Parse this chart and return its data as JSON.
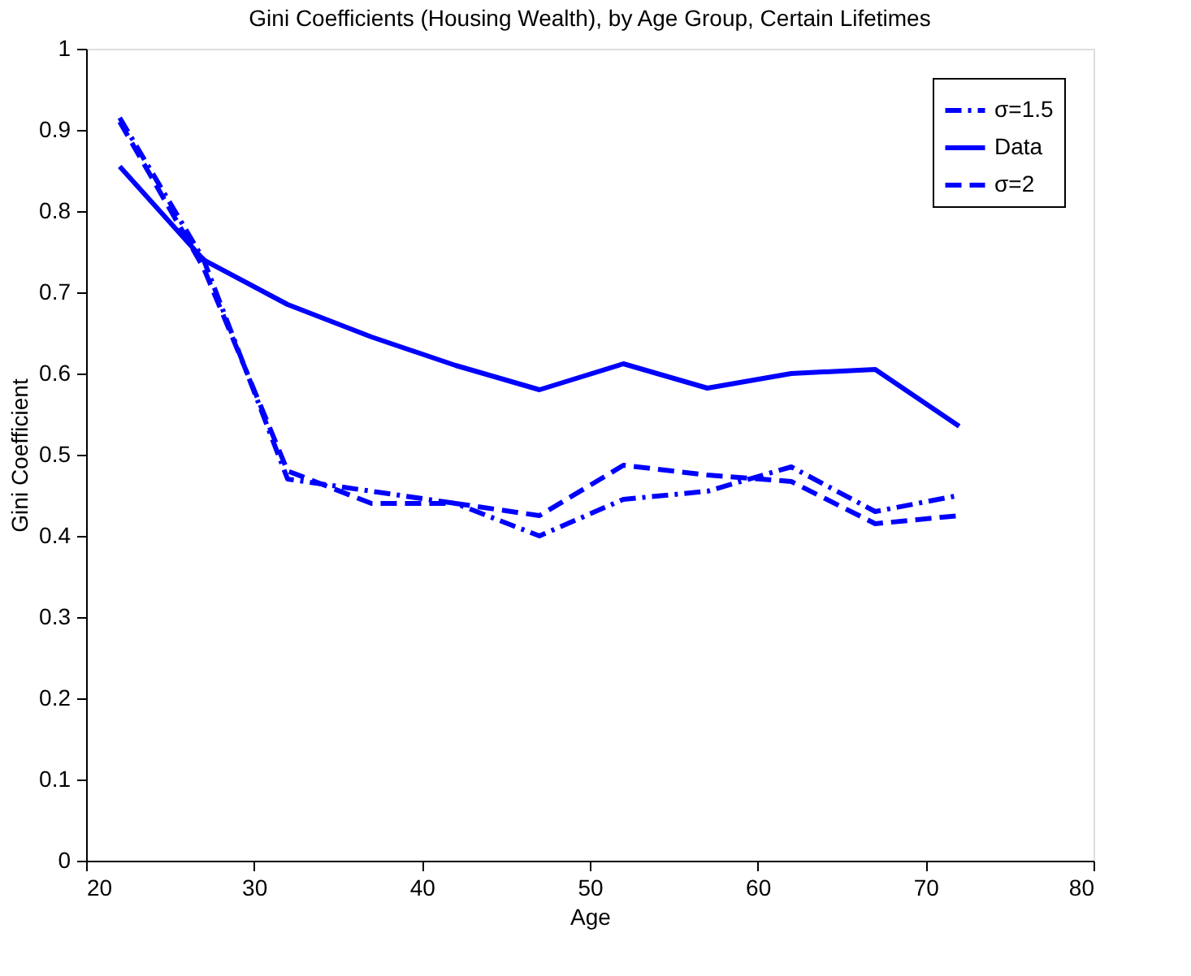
{
  "chart_data": {
    "type": "line",
    "title": "Gini Coefficients (Housing Wealth), by Age Group, Certain Lifetimes",
    "xlabel": "Age",
    "ylabel": "Gini Coefficient",
    "x": [
      22,
      27,
      32,
      37,
      42,
      47,
      52,
      57,
      62,
      67,
      72
    ],
    "series": [
      {
        "name": "σ=1.5",
        "color": "#0000ff",
        "line_style": "dashdot",
        "values": [
          0.915,
          0.74,
          0.47,
          0.455,
          0.44,
          0.4,
          0.445,
          0.455,
          0.485,
          0.43,
          0.45
        ]
      },
      {
        "name": "Data",
        "color": "#0000ff",
        "line_style": "solid",
        "values": [
          0.855,
          0.74,
          0.685,
          0.645,
          0.61,
          0.58,
          0.612,
          0.582,
          0.6,
          0.605,
          0.535
        ]
      },
      {
        "name": "σ=2",
        "color": "#0000ff",
        "line_style": "dashed",
        "values": [
          0.91,
          0.73,
          0.48,
          0.44,
          0.44,
          0.425,
          0.487,
          0.475,
          0.467,
          0.415,
          0.425
        ]
      }
    ],
    "xlim": [
      20,
      80
    ],
    "xticks": [
      20,
      30,
      40,
      50,
      60,
      70,
      80
    ],
    "ylim": [
      0,
      1
    ],
    "yticks": [
      0,
      0.1,
      0.2,
      0.3,
      0.4,
      0.5,
      0.6,
      0.7,
      0.8,
      0.9,
      1
    ],
    "grid": false,
    "legend": "top right",
    "marker": "none"
  }
}
